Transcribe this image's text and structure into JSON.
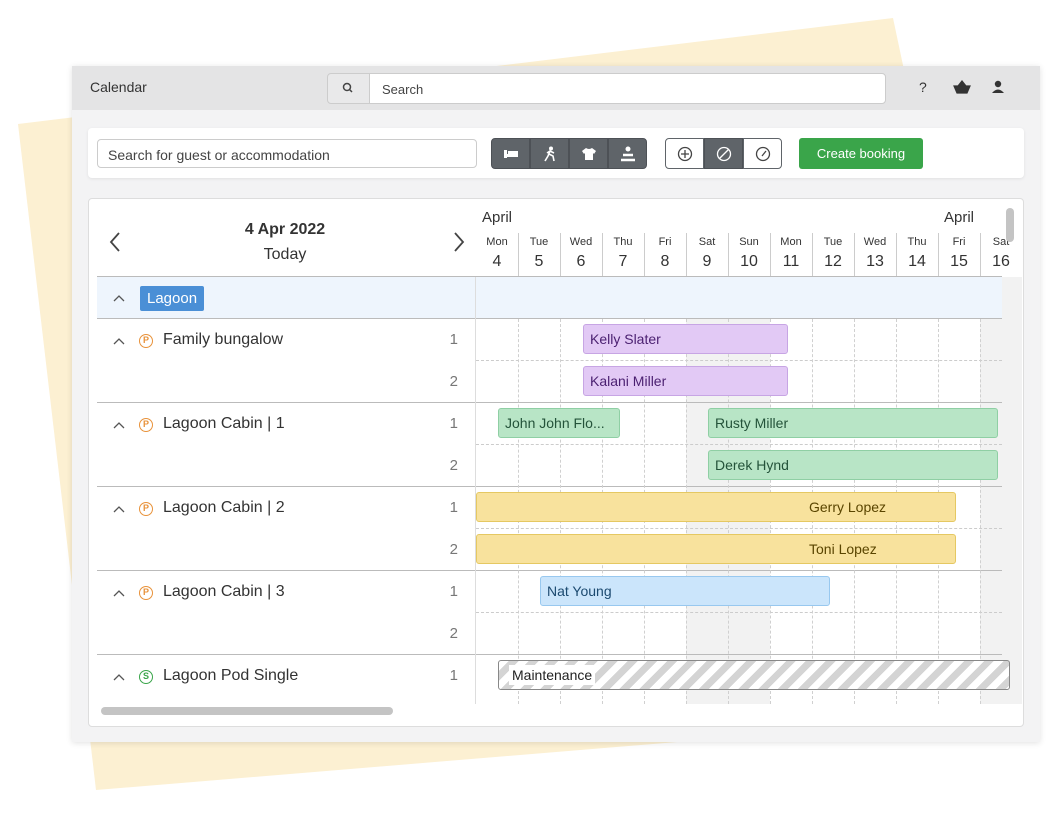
{
  "topbar": {
    "title": "Calendar",
    "search_placeholder": "Search",
    "help": "?"
  },
  "toolbar": {
    "search_placeholder": "Search for guest or accommodation",
    "create_booking": "Create booking"
  },
  "calendar": {
    "date": "4 Apr 2022",
    "today": "Today",
    "months": [
      "April",
      "April"
    ],
    "days": [
      {
        "weekday": "Mon",
        "day": 4
      },
      {
        "weekday": "Tue",
        "day": 5
      },
      {
        "weekday": "Wed",
        "day": 6
      },
      {
        "weekday": "Thu",
        "day": 7
      },
      {
        "weekday": "Fri",
        "day": 8
      },
      {
        "weekday": "Sat",
        "day": 9
      },
      {
        "weekday": "Sun",
        "day": 10
      },
      {
        "weekday": "Mon",
        "day": 11
      },
      {
        "weekday": "Tue",
        "day": 12
      },
      {
        "weekday": "Wed",
        "day": 13
      },
      {
        "weekday": "Thu",
        "day": 14
      },
      {
        "weekday": "Fri",
        "day": 15
      },
      {
        "weekday": "Sat",
        "day": 16
      }
    ],
    "group": "Lagoon",
    "units": [
      {
        "name": "Family bungalow",
        "badge": "P",
        "rooms": [
          {
            "number": 1,
            "bookings": [
              "Kelly Slater"
            ]
          },
          {
            "number": 2,
            "bookings": [
              "Kalani Miller"
            ]
          }
        ]
      },
      {
        "name": "Lagoon Cabin | 1",
        "badge": "P",
        "rooms": [
          {
            "number": 1,
            "bookings": [
              "John John Flo...",
              "Rusty Miller"
            ]
          },
          {
            "number": 2,
            "bookings": [
              "Derek Hynd"
            ]
          }
        ]
      },
      {
        "name": "Lagoon Cabin | 2",
        "badge": "P",
        "rooms": [
          {
            "number": 1,
            "bookings": [
              "Gerry Lopez"
            ]
          },
          {
            "number": 2,
            "bookings": [
              "Toni Lopez"
            ]
          }
        ]
      },
      {
        "name": "Lagoon Cabin | 3",
        "badge": "P",
        "rooms": [
          {
            "number": 1,
            "bookings": [
              "Nat Young"
            ]
          },
          {
            "number": 2,
            "bookings": []
          }
        ]
      },
      {
        "name": "Lagoon Pod Single",
        "badge": "S",
        "rooms": [
          {
            "number": 1,
            "bookings": [
              "Maintenance"
            ]
          }
        ]
      }
    ]
  }
}
